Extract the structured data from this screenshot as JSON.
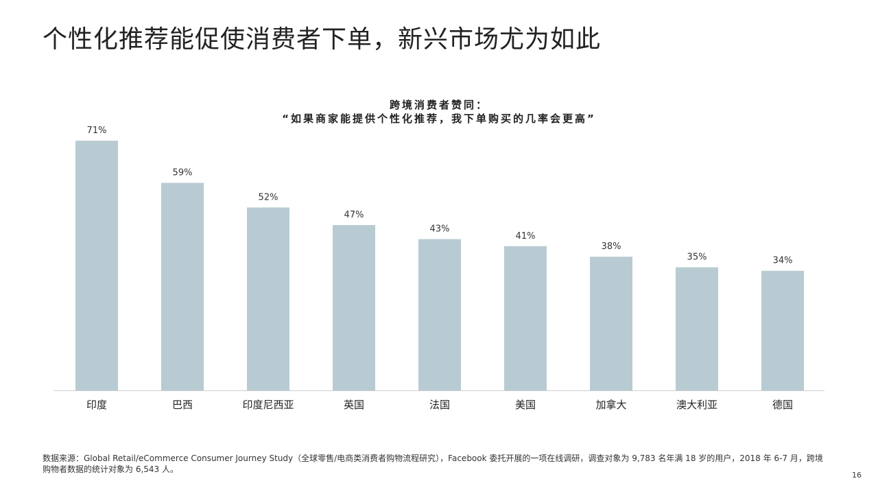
{
  "page": {
    "title": "个性化推荐能促使消费者下单，新兴市场尤为如此",
    "footnote_line1": "数据来源：Global Retail/eCommerce Consumer Journey Study（全球零售/电商类消费者购物流程研究），Facebook 委托开展的一项在线调研，调查对象为 9,783 名年满 18 岁的用户，2018 年 6-7 月，跨境",
    "footnote_line2": "购物者数据的统计对象为 6,543 人。",
    "page_number": "16"
  },
  "chart_data": {
    "type": "bar",
    "title_line1": "跨境消费者赞同：",
    "title_line2": "“如果商家能提供个性化推荐，我下单购买的几率会更高”",
    "categories": [
      "印度",
      "巴西",
      "印度尼西亚",
      "英国",
      "法国",
      "美国",
      "加拿大",
      "澳大利亚",
      "德国"
    ],
    "values": [
      71,
      59,
      52,
      47,
      43,
      41,
      38,
      35,
      34
    ],
    "value_labels": [
      "71%",
      "59%",
      "52%",
      "47%",
      "43%",
      "41%",
      "38%",
      "35%",
      "34%"
    ],
    "xlabel": "",
    "ylabel": "",
    "ylim": [
      0,
      71
    ],
    "grid": false,
    "legend": "none",
    "bar_color": "#b8cbd2",
    "axis_color": "#cfcfcf"
  }
}
